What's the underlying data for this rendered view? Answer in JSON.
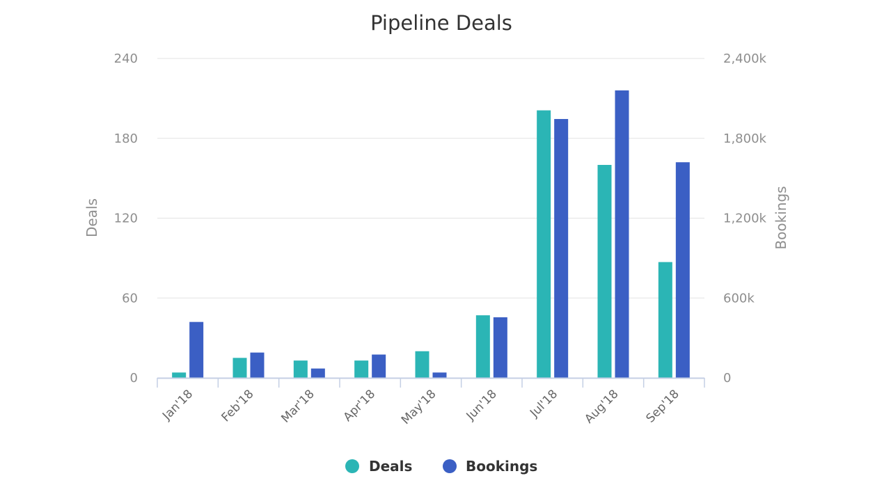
{
  "chart_data": {
    "type": "bar",
    "title": "Pipeline Deals",
    "categories": [
      "Jan'18",
      "Feb'18",
      "Mar'18",
      "Apr'18",
      "May'18",
      "Jun'18",
      "Jul'18",
      "Aug'18",
      "Sep'18"
    ],
    "series": [
      {
        "name": "Deals",
        "axis": "left",
        "color": "#2bb5b5",
        "values": [
          4,
          15,
          13,
          13,
          20,
          47,
          201,
          160,
          87
        ]
      },
      {
        "name": "Bookings",
        "axis": "right",
        "color": "#3b5fc4",
        "values": [
          420000,
          190000,
          70000,
          175000,
          40000,
          455000,
          1945000,
          2160000,
          1620000
        ]
      }
    ],
    "y_left": {
      "label": "Deals",
      "range": [
        0,
        240
      ],
      "ticks": [
        {
          "value": 0,
          "label": "0"
        },
        {
          "value": 60,
          "label": "60"
        },
        {
          "value": 120,
          "label": "120"
        },
        {
          "value": 180,
          "label": "180"
        },
        {
          "value": 240,
          "label": "240"
        }
      ]
    },
    "y_right": {
      "label": "Bookings",
      "range": [
        0,
        2400000
      ],
      "ticks": [
        {
          "value": 0,
          "label": "0"
        },
        {
          "value": 600000,
          "label": "600k"
        },
        {
          "value": 1200000,
          "label": "1,200k"
        },
        {
          "value": 1800000,
          "label": "1,800k"
        },
        {
          "value": 2400000,
          "label": "2,400k"
        }
      ]
    },
    "grid": true,
    "legend": {
      "position": "bottom-center",
      "items": [
        "Deals",
        "Bookings"
      ]
    }
  }
}
